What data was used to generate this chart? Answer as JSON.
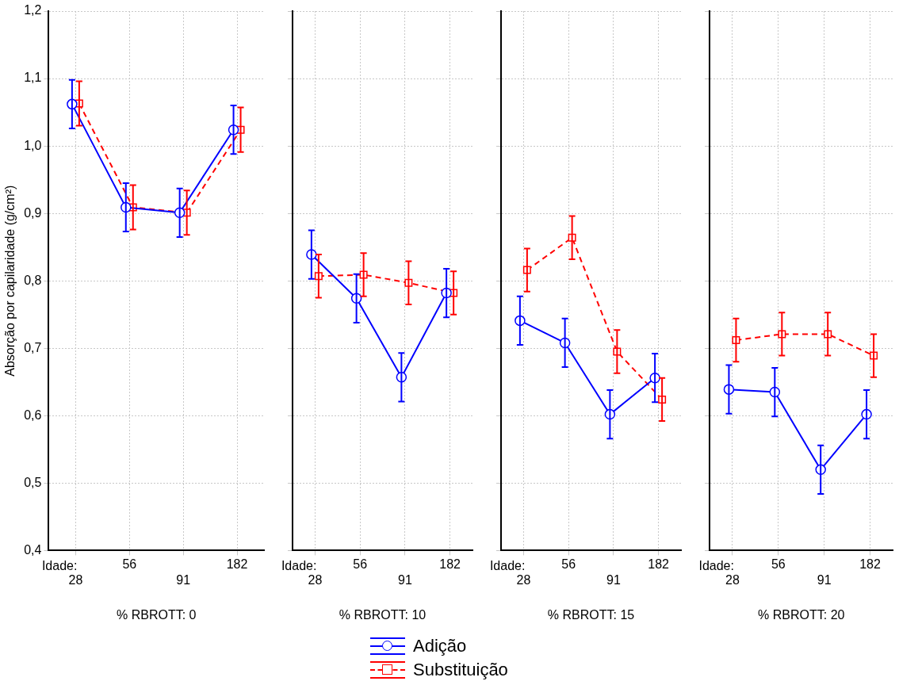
{
  "chart_data": [
    {
      "type": "line",
      "xlabel": "% RBROTT: 0",
      "ylabel": "Absorção por capilaridade (g/cm²)",
      "categories": [
        "28",
        "56",
        "91",
        "182"
      ],
      "annotations": [
        "Idade:"
      ],
      "ylim": [
        0.4,
        1.2
      ],
      "yticks": [
        {
          "value": 0.4,
          "label": "0,4"
        },
        {
          "value": 0.5,
          "label": "0,5"
        },
        {
          "value": 0.6,
          "label": "0,6"
        },
        {
          "value": 0.7,
          "label": "0,7"
        },
        {
          "value": 0.8,
          "label": "0,8"
        },
        {
          "value": 0.9,
          "label": "0,9"
        },
        {
          "value": 1.0,
          "label": "1,0"
        },
        {
          "value": 1.1,
          "label": "1,1"
        },
        {
          "value": 1.2,
          "label": "1,2"
        }
      ],
      "grid": true,
      "legend": "bottom",
      "series": [
        {
          "name": "Adição",
          "color": "#0000ff",
          "marker": "circle",
          "line_style": "solid",
          "values": [
            1.062,
            0.909,
            0.901,
            1.024
          ],
          "errors": [
            0.036,
            0.036,
            0.036,
            0.036
          ]
        },
        {
          "name": "Substituição",
          "color": "#ff0000",
          "marker": "square",
          "line_style": "dashed",
          "values": [
            1.063,
            0.909,
            0.901,
            1.024
          ],
          "errors": [
            0.033,
            0.033,
            0.033,
            0.033
          ]
        }
      ]
    },
    {
      "type": "line",
      "xlabel": "% RBROTT: 10",
      "categories": [
        "28",
        "56",
        "91",
        "182"
      ],
      "annotations": [
        "Idade:"
      ],
      "ylim": [
        0.4,
        1.2
      ],
      "yticks": [
        {
          "value": 0.4,
          "label": null
        },
        {
          "value": 0.5,
          "label": null
        },
        {
          "value": 0.6,
          "label": null
        },
        {
          "value": 0.7,
          "label": null
        },
        {
          "value": 0.8,
          "label": null
        },
        {
          "value": 0.9,
          "label": null
        },
        {
          "value": 1.0,
          "label": null
        },
        {
          "value": 1.1,
          "label": null
        },
        {
          "value": 1.2,
          "label": null
        }
      ],
      "grid": true,
      "tick_labels": "x",
      "series": [
        {
          "color": "#0000ff",
          "marker": "circle",
          "line_style": "solid",
          "values": [
            0.839,
            0.774,
            0.657,
            0.782
          ],
          "errors": [
            0.036,
            0.036,
            0.036,
            0.036
          ]
        },
        {
          "color": "#ff0000",
          "marker": "square",
          "line_style": "dashed",
          "values": [
            0.807,
            0.809,
            0.797,
            0.782
          ],
          "errors": [
            0.032,
            0.032,
            0.032,
            0.032
          ]
        }
      ]
    },
    {
      "type": "line",
      "xlabel": "% RBROTT: 15",
      "categories": [
        "28",
        "56",
        "91",
        "182"
      ],
      "annotations": [
        "Idade:"
      ],
      "ylim": [
        0.4,
        1.2
      ],
      "yticks": [
        {
          "value": 0.4,
          "label": null
        },
        {
          "value": 0.5,
          "label": null
        },
        {
          "value": 0.6,
          "label": null
        },
        {
          "value": 0.7,
          "label": null
        },
        {
          "value": 0.8,
          "label": null
        },
        {
          "value": 0.9,
          "label": null
        },
        {
          "value": 1.0,
          "label": null
        },
        {
          "value": 1.1,
          "label": null
        },
        {
          "value": 1.2,
          "label": null
        }
      ],
      "grid": true,
      "tick_labels": "x",
      "series": [
        {
          "color": "#0000ff",
          "marker": "circle",
          "line_style": "solid",
          "values": [
            0.741,
            0.708,
            0.602,
            0.656
          ],
          "errors": [
            0.036,
            0.036,
            0.036,
            0.036
          ]
        },
        {
          "color": "#ff0000",
          "marker": "square",
          "line_style": "dashed",
          "values": [
            0.816,
            0.864,
            0.695,
            0.624
          ],
          "errors": [
            0.032,
            0.032,
            0.032,
            0.032
          ]
        }
      ]
    },
    {
      "type": "line",
      "xlabel": "% RBROTT: 20",
      "categories": [
        "28",
        "56",
        "91",
        "182"
      ],
      "annotations": [
        "Idade:"
      ],
      "ylim": [
        0.4,
        1.2
      ],
      "yticks": [
        {
          "value": 0.4,
          "label": null
        },
        {
          "value": 0.5,
          "label": null
        },
        {
          "value": 0.6,
          "label": null
        },
        {
          "value": 0.7,
          "label": null
        },
        {
          "value": 0.8,
          "label": null
        },
        {
          "value": 0.9,
          "label": null
        },
        {
          "value": 1.0,
          "label": null
        },
        {
          "value": 1.1,
          "label": null
        },
        {
          "value": 1.2,
          "label": null
        }
      ],
      "grid": true,
      "tick_labels": "x",
      "series": [
        {
          "color": "#0000ff",
          "marker": "circle",
          "line_style": "solid",
          "values": [
            0.639,
            0.635,
            0.52,
            0.602
          ],
          "errors": [
            0.036,
            0.036,
            0.036,
            0.036
          ]
        },
        {
          "color": "#ff0000",
          "marker": "square",
          "line_style": "dashed",
          "values": [
            0.712,
            0.721,
            0.721,
            0.689
          ],
          "errors": [
            0.032,
            0.032,
            0.032,
            0.032
          ]
        }
      ]
    }
  ]
}
